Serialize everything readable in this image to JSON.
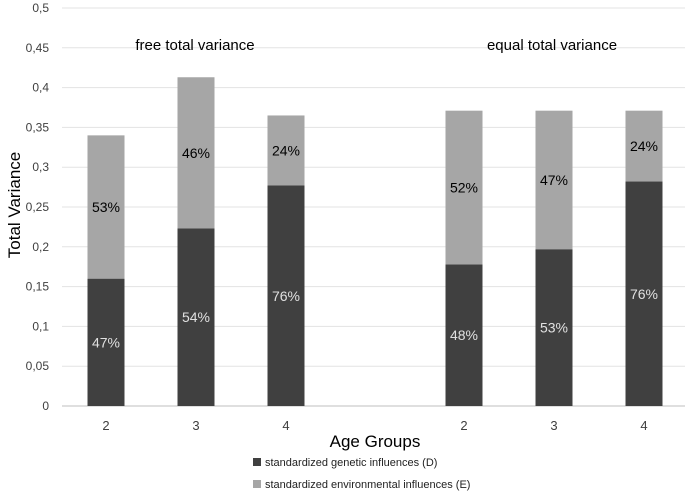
{
  "chart_data": {
    "type": "bar",
    "stacked": true,
    "ylabel": "Total Variance",
    "xlabel": "Age Groups",
    "ylim": [
      0,
      0.5
    ],
    "yticks": [
      "0",
      "0,05",
      "0,1",
      "0,15",
      "0,2",
      "0,25",
      "0,3",
      "0,35",
      "0,4",
      "0,45",
      "0,5"
    ],
    "grid": true,
    "groups": [
      {
        "title": "free total variance",
        "categories": [
          "2",
          "3",
          "4"
        ],
        "bars": [
          {
            "genetic": 0.16,
            "environmental": 0.18,
            "genetic_label": "47%",
            "environmental_label": "53%"
          },
          {
            "genetic": 0.223,
            "environmental": 0.19,
            "genetic_label": "54%",
            "environmental_label": "46%"
          },
          {
            "genetic": 0.277,
            "environmental": 0.088,
            "genetic_label": "76%",
            "environmental_label": "24%"
          }
        ]
      },
      {
        "title": "equal total variance",
        "categories": [
          "2",
          "3",
          "4"
        ],
        "bars": [
          {
            "genetic": 0.178,
            "environmental": 0.193,
            "genetic_label": "48%",
            "environmental_label": "52%"
          },
          {
            "genetic": 0.197,
            "environmental": 0.174,
            "genetic_label": "53%",
            "environmental_label": "47%"
          },
          {
            "genetic": 0.282,
            "environmental": 0.089,
            "genetic_label": "76%",
            "environmental_label": "24%"
          }
        ]
      }
    ],
    "series": [
      {
        "key": "genetic",
        "name": "standardized genetic influences (D)",
        "color": "#404040",
        "label_color": "#e0e0e0"
      },
      {
        "key": "environmental",
        "name": "standardized environmental influences (E)",
        "color": "#a6a6a6",
        "label_color": "#000000"
      }
    ],
    "legend_position": "bottom"
  }
}
